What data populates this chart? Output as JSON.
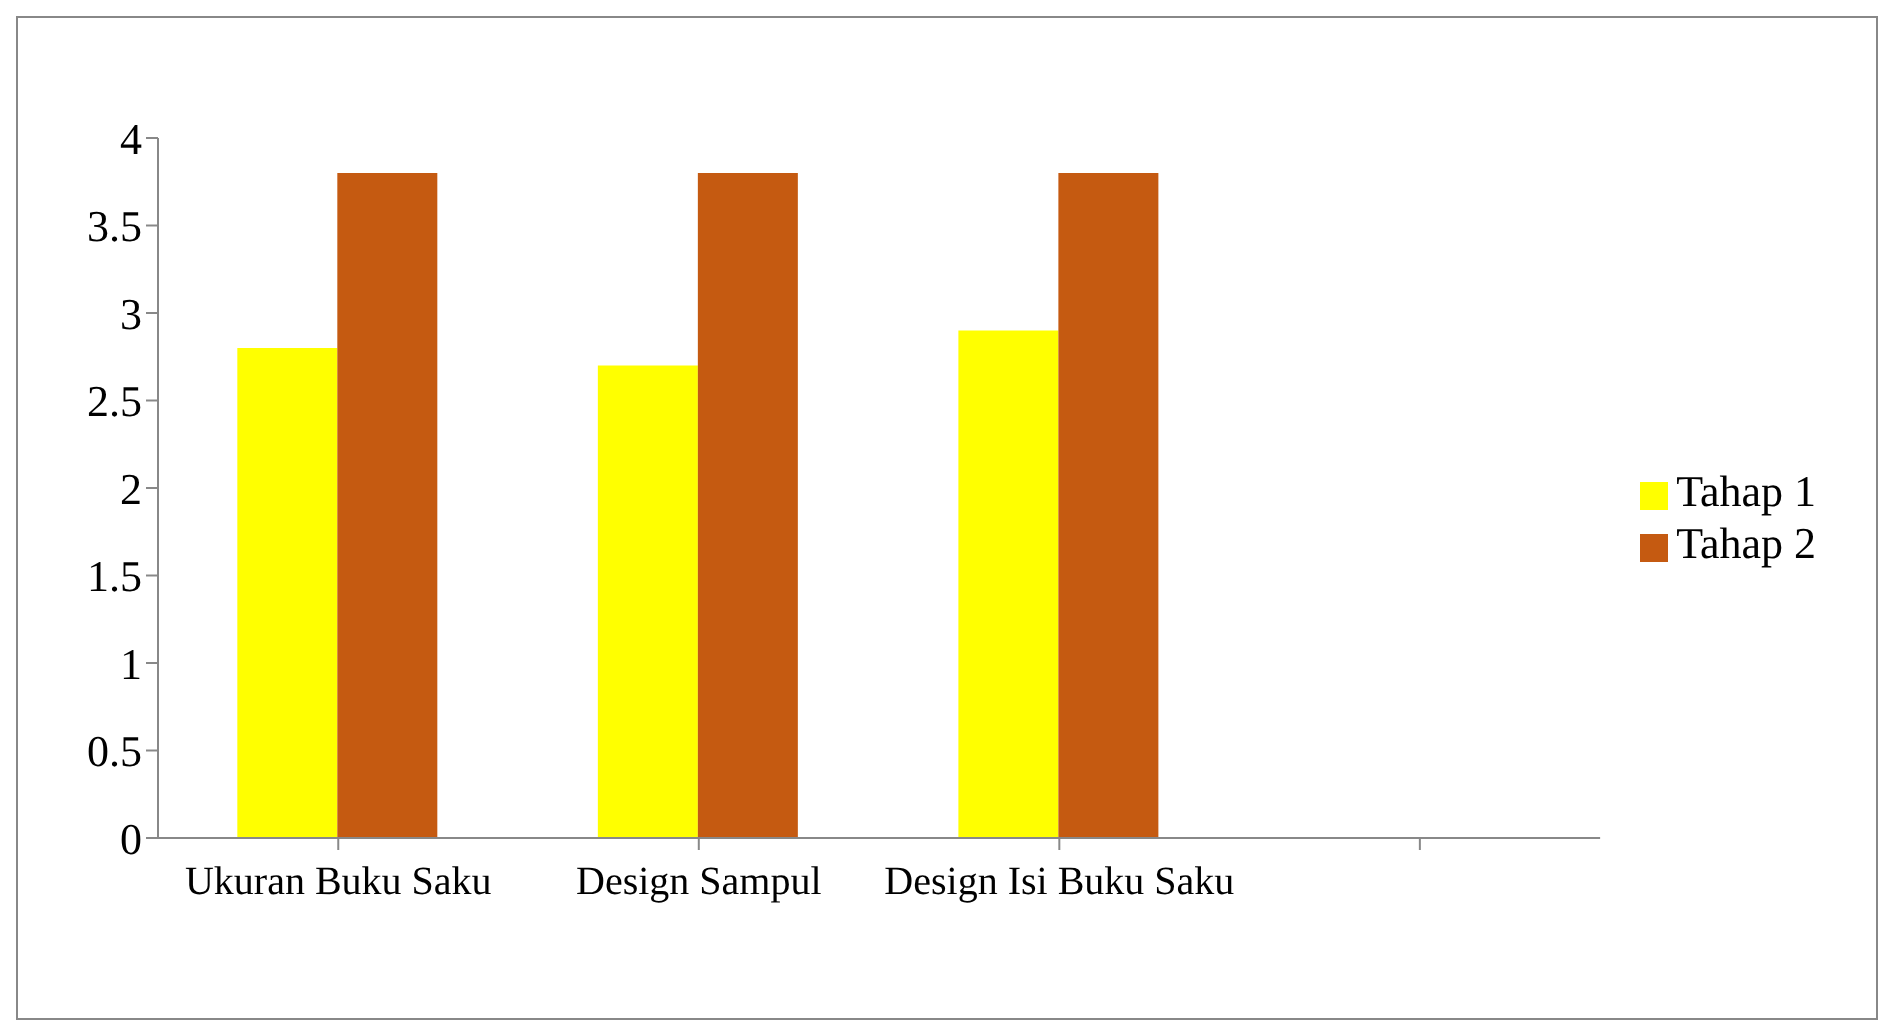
{
  "chart_data": {
    "type": "bar",
    "categories": [
      "Ukuran Buku Saku",
      "Design Sampul",
      "Design Isi Buku Saku",
      null
    ],
    "series": [
      {
        "name": "Tahap 1",
        "color": "#ffff00",
        "values": [
          2.8,
          2.7,
          2.9,
          null
        ]
      },
      {
        "name": "Tahap 2",
        "color": "#c55a11",
        "values": [
          3.8,
          3.8,
          3.8,
          null
        ]
      }
    ],
    "ylim": [
      0,
      4
    ],
    "yticks": [
      0,
      0.5,
      1,
      1.5,
      2,
      2.5,
      3,
      3.5,
      4
    ],
    "grid": false,
    "legend": "right"
  }
}
